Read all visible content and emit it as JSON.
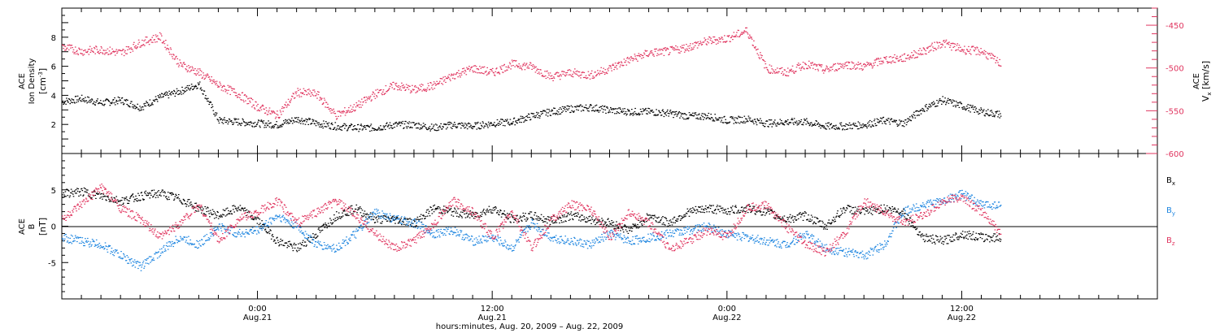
{
  "colors": {
    "black": "#000000",
    "pink": "#e0355f",
    "blue": "#1f86e0"
  },
  "chart_data": [
    {
      "type": "scatter",
      "panel": "top",
      "left_axis": {
        "label_line1": "ACE",
        "label_line2": "Ion Density",
        "unit": "[cm",
        "unit_sup": "-3",
        "unit_end": "]",
        "ylim": [
          0,
          10
        ],
        "ticks": [
          2,
          4,
          6,
          8
        ],
        "tick_labels": [
          "2",
          "4",
          "6",
          "8"
        ]
      },
      "right_axis": {
        "label_main": "ACE",
        "label_var": "V",
        "label_sub": "x",
        "unit": "[km/s]",
        "ylim": [
          -600,
          -430
        ],
        "ticks": [
          -450,
          -500,
          -550,
          -600
        ],
        "tick_labels": [
          "-450",
          "-500",
          "-550",
          "-600"
        ],
        "color": "#e0355f"
      },
      "series": [
        {
          "axis": "left",
          "color": "#000000",
          "x": [
            0,
            1,
            2,
            3,
            4,
            5,
            6,
            7,
            8,
            9,
            10,
            11,
            12,
            13,
            14,
            15,
            16,
            17,
            18,
            19,
            20,
            21,
            22,
            23,
            24,
            25,
            26,
            27,
            28,
            29,
            30,
            31,
            32,
            33,
            34,
            35,
            36,
            37,
            38,
            39,
            40,
            41,
            42,
            43,
            44,
            45,
            46,
            47,
            48
          ],
          "values": [
            3.6,
            3.8,
            3.5,
            3.7,
            3.2,
            3.9,
            4.3,
            4.8,
            2.3,
            2.2,
            2.1,
            2.0,
            2.4,
            2.1,
            1.9,
            1.8,
            1.8,
            2.0,
            2.0,
            1.8,
            2.0,
            1.9,
            2.1,
            2.2,
            2.6,
            2.9,
            3.1,
            3.2,
            3.0,
            2.9,
            2.9,
            2.8,
            2.6,
            2.6,
            2.3,
            2.4,
            2.1,
            2.2,
            2.2,
            1.9,
            1.9,
            2.0,
            2.3,
            2.1,
            3.1,
            3.7,
            3.3,
            2.9,
            2.7
          ]
        },
        {
          "axis": "right",
          "color": "#e0355f",
          "x": [
            0,
            1,
            2,
            3,
            4,
            5,
            6,
            7,
            8,
            9,
            10,
            11,
            12,
            13,
            14,
            15,
            16,
            17,
            18,
            19,
            20,
            21,
            22,
            23,
            24,
            25,
            26,
            27,
            28,
            29,
            30,
            31,
            32,
            33,
            34,
            35,
            36,
            37,
            38,
            39,
            40,
            41,
            42,
            43,
            44,
            45,
            46,
            47,
            48
          ],
          "values": [
            -475,
            -480,
            -478,
            -482,
            -470,
            -463,
            -495,
            -505,
            -520,
            -530,
            -545,
            -555,
            -528,
            -530,
            -555,
            -545,
            -530,
            -520,
            -525,
            -520,
            -508,
            -500,
            -505,
            -495,
            -498,
            -510,
            -505,
            -508,
            -500,
            -490,
            -482,
            -480,
            -475,
            -468,
            -465,
            -456,
            -500,
            -505,
            -495,
            -502,
            -495,
            -498,
            -490,
            -488,
            -480,
            -470,
            -478,
            -480,
            -495
          ]
        }
      ]
    },
    {
      "type": "scatter",
      "panel": "bottom",
      "left_axis": {
        "label_line1": "ACE",
        "label_line2": "B",
        "unit": "[nT]",
        "ylim": [
          -10,
          10
        ],
        "ticks": [
          5,
          0,
          -5
        ],
        "tick_labels": [
          "5",
          "0",
          "-5"
        ]
      },
      "legend": [
        {
          "base": "B",
          "sub": "x",
          "color": "#000000"
        },
        {
          "base": "B",
          "sub": "y",
          "color": "#1f86e0"
        },
        {
          "base": "B",
          "sub": "z",
          "color": "#e0355f"
        }
      ],
      "series": [
        {
          "color": "#000000",
          "x": [
            0,
            1,
            2,
            3,
            4,
            5,
            6,
            7,
            8,
            9,
            10,
            11,
            12,
            13,
            14,
            15,
            16,
            17,
            18,
            19,
            20,
            21,
            22,
            23,
            24,
            25,
            26,
            27,
            28,
            29,
            30,
            31,
            32,
            33,
            34,
            35,
            36,
            37,
            38,
            39,
            40,
            41,
            42,
            43,
            44,
            45,
            46,
            47,
            48
          ],
          "values": [
            4.5,
            4.8,
            4.2,
            3.5,
            4.2,
            4.6,
            3.8,
            2.5,
            1.5,
            2.6,
            0.8,
            -2.0,
            -3.0,
            -1.0,
            1.5,
            2.5,
            1.0,
            1.0,
            0.5,
            2.5,
            2.0,
            1.5,
            2.5,
            1.0,
            1.5,
            0.8,
            1.5,
            1.0,
            0.5,
            -0.5,
            1.5,
            0.5,
            2.0,
            2.5,
            2.2,
            2.5,
            2.0,
            1.0,
            1.5,
            0,
            2.5,
            2.0,
            2.5,
            2.0,
            -1.5,
            -2.0,
            -1.0,
            -1.5,
            -1.5
          ]
        },
        {
          "color": "#1f86e0",
          "x": [
            0,
            1,
            2,
            3,
            4,
            5,
            6,
            7,
            8,
            9,
            10,
            11,
            12,
            13,
            14,
            15,
            16,
            17,
            18,
            19,
            20,
            21,
            22,
            23,
            24,
            25,
            26,
            27,
            28,
            29,
            30,
            31,
            32,
            33,
            34,
            35,
            36,
            37,
            38,
            39,
            40,
            41,
            42,
            43,
            44,
            45,
            46,
            47,
            48
          ],
          "values": [
            -1.5,
            -2.0,
            -2.5,
            -4.0,
            -5.5,
            -3.5,
            -1.5,
            -2.5,
            0,
            -1.0,
            -0.5,
            1.5,
            0,
            -2.5,
            -3.0,
            -1.0,
            2.0,
            1.0,
            0.5,
            -1.0,
            -0.5,
            -2.0,
            -1.5,
            -3.0,
            0.5,
            -1.5,
            -2.0,
            -2.5,
            -1.0,
            -2.0,
            -1.5,
            -1.0,
            -0.5,
            0,
            -1.0,
            -1.5,
            -2.0,
            -2.5,
            -1.0,
            -3.0,
            -3.5,
            -4.0,
            -2.5,
            2.0,
            3.0,
            3.5,
            4.5,
            3.0,
            3.0
          ]
        },
        {
          "color": "#e0355f",
          "x": [
            0,
            1,
            2,
            3,
            4,
            5,
            6,
            7,
            8,
            9,
            10,
            11,
            12,
            13,
            14,
            15,
            16,
            17,
            18,
            19,
            20,
            21,
            22,
            23,
            24,
            25,
            26,
            27,
            28,
            29,
            30,
            31,
            32,
            33,
            34,
            35,
            36,
            37,
            38,
            39,
            40,
            41,
            42,
            43,
            44,
            45,
            46,
            47,
            48
          ],
          "values": [
            1.0,
            3.0,
            5.5,
            2.5,
            1.0,
            -1.5,
            0.5,
            3.0,
            -2.0,
            1.0,
            2.0,
            3.5,
            0.5,
            2.0,
            3.5,
            1.5,
            -1.0,
            -3.0,
            -2.0,
            0.5,
            3.5,
            2.0,
            -1.5,
            2.0,
            -3.0,
            1.0,
            3.0,
            2.5,
            -1.5,
            2.0,
            0.5,
            -3.0,
            -2.0,
            -0.5,
            -1.5,
            2.5,
            3.0,
            0,
            -2.5,
            -3.5,
            -1.0,
            3.5,
            2.0,
            0.5,
            1.5,
            3.5,
            4.0,
            2.0,
            -1.0
          ]
        }
      ]
    }
  ],
  "time_axis": {
    "x_range_hours": [
      0,
      56
    ],
    "major_ticks": [
      {
        "hour": 10,
        "time": "0:00",
        "date": "Aug.21"
      },
      {
        "hour": 22,
        "time": "12:00",
        "date": "Aug.21"
      },
      {
        "hour": 34,
        "time": "0:00",
        "date": "Aug.22"
      },
      {
        "hour": 46,
        "time": "12:00",
        "date": "Aug.22"
      }
    ],
    "caption": "hours:minutes, Aug. 20, 2009 – Aug. 22, 2009"
  }
}
